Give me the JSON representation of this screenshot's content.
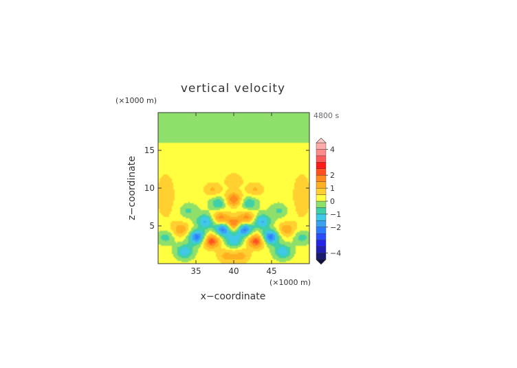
{
  "chart_data": {
    "type": "heatmap",
    "title": "vertical velocity",
    "xlabel": "x−coordinate",
    "ylabel": "z−coordinate",
    "x_unit": "(×1000 m)",
    "y_unit": "(×1000 m)",
    "time_label": "4800 s",
    "xlim": [
      30,
      50
    ],
    "ylim": [
      0,
      20
    ],
    "xticks": [
      35,
      40,
      45
    ],
    "yticks": [
      5,
      10,
      15
    ],
    "colorbar": {
      "levels": [
        -4.5,
        -4,
        -3.5,
        -3,
        -2.5,
        -2,
        -1.5,
        -1,
        -0.5,
        0,
        0.5,
        1,
        1.5,
        2,
        2.5,
        3,
        3.5,
        4,
        4.5
      ],
      "colors": [
        "#1a1a6e",
        "#1f1fb3",
        "#2424e6",
        "#2a4cff",
        "#2b7bff",
        "#3aa0f0",
        "#40c8e8",
        "#3fd0a8",
        "#8ee06a",
        "#ffff40",
        "#ffd030",
        "#ffb020",
        "#ff8a20",
        "#ff5020",
        "#ff1a1a",
        "#ff5a5a",
        "#ff8a8a",
        "#ffaaaa"
      ],
      "tick_labels": [
        "4",
        "2",
        "1",
        "0",
        "−1",
        "−2",
        "−4"
      ],
      "tick_values": [
        4,
        2,
        1,
        0,
        -1,
        -2,
        -4
      ],
      "extend": "both"
    },
    "background_value": 0.2,
    "upper_layer": {
      "z_above": 16,
      "value": -0.1
    },
    "features": [
      {
        "x": 40.0,
        "z": 5.1,
        "value": 2.5
      },
      {
        "x": 40.0,
        "z": 8.5,
        "value": 1.8
      },
      {
        "x": 37.0,
        "z": 3.0,
        "value": 2.2
      },
      {
        "x": 43.0,
        "z": 3.0,
        "value": 2.2
      },
      {
        "x": 38.2,
        "z": 6.0,
        "value": 1.6
      },
      {
        "x": 41.8,
        "z": 6.0,
        "value": 1.6
      },
      {
        "x": 33.0,
        "z": 4.5,
        "value": 1.2
      },
      {
        "x": 47.0,
        "z": 4.5,
        "value": 1.2
      },
      {
        "x": 38.7,
        "z": 4.6,
        "value": -2.8
      },
      {
        "x": 41.3,
        "z": 4.6,
        "value": -2.8
      },
      {
        "x": 35.2,
        "z": 3.5,
        "value": -2.5
      },
      {
        "x": 44.8,
        "z": 3.5,
        "value": -2.5
      },
      {
        "x": 36.3,
        "z": 5.6,
        "value": -1.8
      },
      {
        "x": 43.7,
        "z": 5.6,
        "value": -1.8
      },
      {
        "x": 33.5,
        "z": 1.6,
        "value": -1.6
      },
      {
        "x": 46.5,
        "z": 1.6,
        "value": -1.6
      },
      {
        "x": 31.0,
        "z": 3.5,
        "value": -1.0
      },
      {
        "x": 49.0,
        "z": 3.5,
        "value": -1.0
      },
      {
        "x": 40.0,
        "z": 3.0,
        "value": -1.5
      },
      {
        "x": 38.0,
        "z": 8.0,
        "value": -1.2
      },
      {
        "x": 42.0,
        "z": 8.0,
        "value": -1.2
      },
      {
        "x": 37.2,
        "z": 9.8,
        "value": 0.9
      },
      {
        "x": 42.8,
        "z": 9.8,
        "value": 0.9
      },
      {
        "x": 40.0,
        "z": 11.0,
        "value": 0.8
      },
      {
        "x": 34.0,
        "z": 7.0,
        "value": -0.8
      },
      {
        "x": 46.0,
        "z": 7.0,
        "value": -0.8
      },
      {
        "x": 39.0,
        "z": 1.0,
        "value": 1.0
      },
      {
        "x": 41.0,
        "z": 1.0,
        "value": 1.0
      }
    ]
  }
}
